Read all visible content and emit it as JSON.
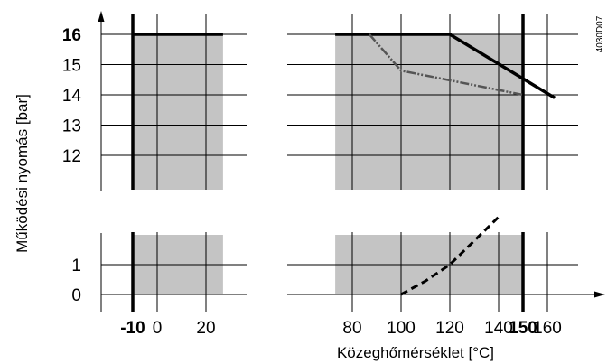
{
  "chart_data": {
    "type": "line",
    "title": "",
    "xlabel": "Közeghőmérséklet [°C]",
    "ylabel": "Működési nyomás  [bar]",
    "figure_code": "4030D07",
    "x_ticks": [
      {
        "value": -10,
        "label": "-10",
        "bold": true
      },
      {
        "value": 0,
        "label": "0",
        "bold": false
      },
      {
        "value": 20,
        "label": "20",
        "bold": false
      },
      {
        "value": 80,
        "label": "80",
        "bold": false
      },
      {
        "value": 100,
        "label": "100",
        "bold": false
      },
      {
        "value": 120,
        "label": "120",
        "bold": false
      },
      {
        "value": 140,
        "label": "140",
        "bold": false
      },
      {
        "value": 150,
        "label": "150",
        "bold": true
      },
      {
        "value": 160,
        "label": "160",
        "bold": false
      }
    ],
    "y_ticks_upper": [
      {
        "value": 16,
        "label": "16",
        "bold": true
      },
      {
        "value": 15,
        "label": "15",
        "bold": false
      },
      {
        "value": 14,
        "label": "14",
        "bold": false
      },
      {
        "value": 13,
        "label": "13",
        "bold": false
      },
      {
        "value": 12,
        "label": "12",
        "bold": false
      }
    ],
    "y_ticks_lower": [
      {
        "value": 1,
        "label": "1",
        "bold": false
      },
      {
        "value": 0,
        "label": "0",
        "bold": false
      }
    ],
    "xlim": [
      -20,
      170
    ],
    "ylim_upper": [
      11,
      16.8
    ],
    "ylim_lower": [
      0,
      2
    ],
    "shaded_regions": [
      {
        "x": [
          -10,
          27
        ],
        "y": [
          11,
          16
        ]
      },
      {
        "x": [
          73,
          150
        ],
        "y": [
          11,
          16
        ]
      },
      {
        "x": [
          -10,
          27
        ],
        "y": [
          0,
          2
        ]
      },
      {
        "x": [
          73,
          150
        ],
        "y": [
          0,
          2
        ]
      }
    ],
    "series": [
      {
        "style": "solid",
        "panel": "upper",
        "segment": 1,
        "x": [
          -10,
          27
        ],
        "y": [
          16,
          16
        ]
      },
      {
        "style": "solid",
        "panel": "upper",
        "segment": 2,
        "x": [
          73,
          120,
          163
        ],
        "y": [
          16,
          16,
          13.9
        ]
      },
      {
        "style": "dash-dot",
        "panel": "upper",
        "x": [
          87,
          100,
          150
        ],
        "y": [
          16,
          14.8,
          14.0
        ]
      },
      {
        "style": "dashed",
        "panel": "lower",
        "x": [
          100,
          110,
          120,
          130,
          140
        ],
        "y": [
          0,
          0.45,
          1.0,
          1.8,
          2.6
        ]
      }
    ],
    "grid": true
  }
}
